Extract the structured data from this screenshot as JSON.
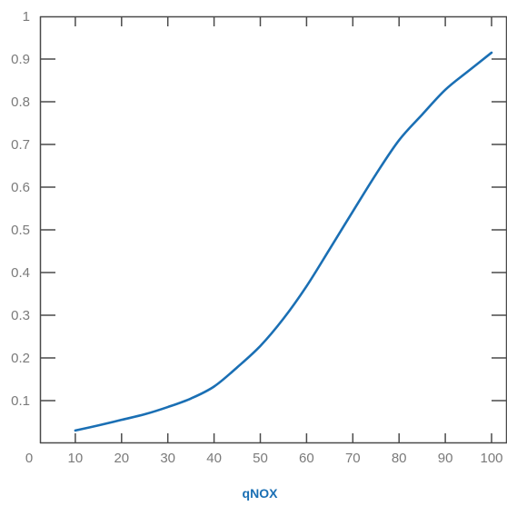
{
  "chart_data": {
    "type": "line",
    "title": "",
    "xlabel": "qNOX",
    "ylabel": "",
    "xlim": [
      0,
      100
    ],
    "ylim": [
      0,
      1
    ],
    "x_ticks": [
      0,
      10,
      20,
      30,
      40,
      50,
      60,
      70,
      80,
      90,
      100
    ],
    "y_ticks": [
      0.1,
      0.2,
      0.3,
      0.4,
      0.5,
      0.6,
      0.7,
      0.8,
      0.9,
      1
    ],
    "x_tick_labels": [
      "0",
      "10",
      "20",
      "30",
      "40",
      "50",
      "60",
      "70",
      "80",
      "90",
      "100"
    ],
    "y_tick_labels": [
      "0.1",
      "0.2",
      "0.3",
      "0.4",
      "0.5",
      "0.6",
      "0.7",
      "0.8",
      "0.9",
      "1"
    ],
    "grid": false,
    "colors": {
      "line": "#1a6fb4",
      "axis": "#4a4a4a",
      "tick_label": "#7a7a7a",
      "xlabel": "#1a6fb4"
    },
    "series": [
      {
        "x": [
          10,
          15,
          20,
          25,
          30,
          35,
          40,
          45,
          50,
          55,
          60,
          65,
          70,
          75,
          80,
          85,
          90,
          95,
          100
        ],
        "y": [
          0.03,
          0.042,
          0.055,
          0.068,
          0.085,
          0.105,
          0.133,
          0.178,
          0.228,
          0.292,
          0.368,
          0.455,
          0.543,
          0.63,
          0.71,
          0.77,
          0.828,
          0.872,
          0.915
        ]
      }
    ]
  }
}
